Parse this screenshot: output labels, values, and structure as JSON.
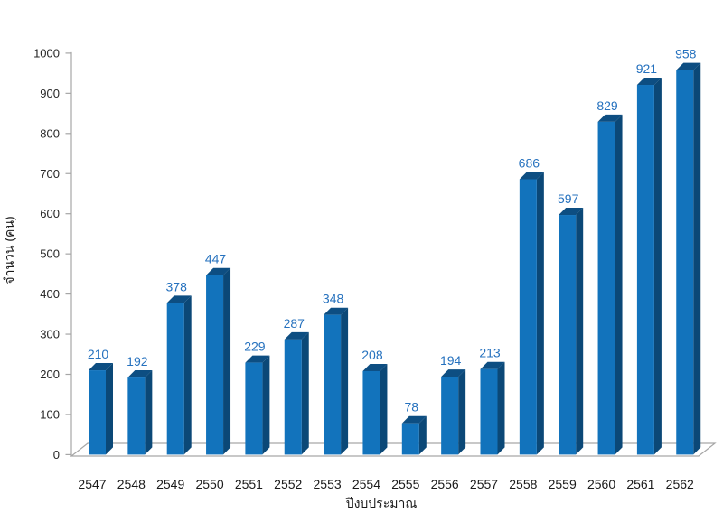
{
  "chart_data": {
    "type": "bar",
    "variant": "3d-column",
    "title": "",
    "xlabel": "ปีงบประมาณ",
    "ylabel": "จำนวน (คน)",
    "categories": [
      "2547",
      "2548",
      "2549",
      "2550",
      "2551",
      "2552",
      "2553",
      "2554",
      "2555",
      "2556",
      "2557",
      "2558",
      "2559",
      "2560",
      "2561",
      "2562"
    ],
    "values": [
      210,
      192,
      378,
      447,
      229,
      287,
      348,
      208,
      78,
      194,
      213,
      686,
      597,
      829,
      921,
      958
    ],
    "ylim": [
      0,
      1000
    ],
    "ytick_step": 100,
    "grid": false,
    "legend": "none",
    "colors": {
      "bar_front": "#1273bc",
      "bar_side": "#0b4877",
      "bar_top": "#0d4e82",
      "value_label": "#2571be",
      "axis_line": "#a6a6a6",
      "tick_label": "#262626"
    }
  }
}
